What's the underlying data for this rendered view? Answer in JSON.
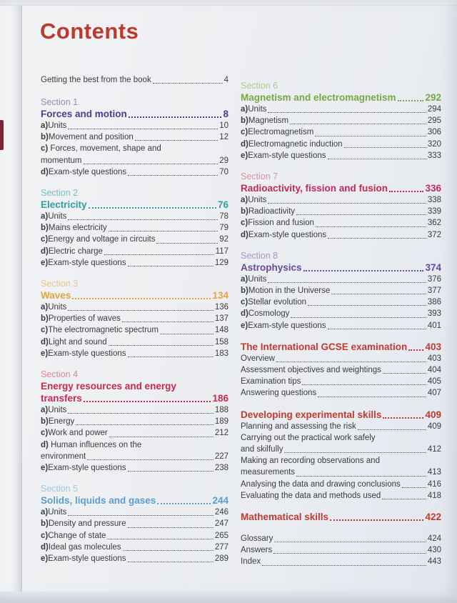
{
  "page": {
    "title": "Contents",
    "title_color": "#bb3a2d",
    "intro_entry": {
      "text": "Getting the best from the book",
      "page": "4"
    }
  },
  "columns": {
    "left": [
      {
        "label": "Section 1",
        "label_color": "#948bb5",
        "color": "#4a3d8f",
        "title": "Forces and motion",
        "page": "8",
        "entries": [
          {
            "prefix": "a)",
            "text": "Units",
            "page": "10"
          },
          {
            "prefix": "b)",
            "text": "Movement and position",
            "page": "12"
          },
          {
            "prefix": "c)",
            "text": "Forces, movement, shape and",
            "text2": "momentum",
            "page": "29"
          },
          {
            "prefix": "d)",
            "text": "Exam-style questions",
            "page": "70"
          }
        ]
      },
      {
        "label": "Section 2",
        "label_color": "#79bcc0",
        "color": "#2f9fa4",
        "title": "Electricity",
        "page": "76",
        "entries": [
          {
            "prefix": "a)",
            "text": "Units",
            "page": "78"
          },
          {
            "prefix": "b)",
            "text": "Mains electricity",
            "page": "79"
          },
          {
            "prefix": "c)",
            "text": "Energy and voltage in circuits",
            "page": "92"
          },
          {
            "prefix": "d)",
            "text": "Electric charge",
            "page": "117"
          },
          {
            "prefix": "e)",
            "text": "Exam-style questions",
            "page": "129"
          }
        ]
      },
      {
        "label": "Section 3",
        "label_color": "#eec489",
        "color": "#e8a23e",
        "title": "Waves",
        "page": "134",
        "entries": [
          {
            "prefix": "a)",
            "text": "Units",
            "page": "136"
          },
          {
            "prefix": "b)",
            "text": "Properties of waves",
            "page": "137"
          },
          {
            "prefix": "c)",
            "text": "The electromagnetic spectrum",
            "page": "148"
          },
          {
            "prefix": "d)",
            "text": "Light and sound",
            "page": "158"
          },
          {
            "prefix": "e)",
            "text": "Exam-style questions",
            "page": "183"
          }
        ]
      },
      {
        "label": "Section 4",
        "label_color": "#e2889a",
        "color": "#d0274a",
        "title": "Energy resources and energy",
        "title2": "transfers",
        "page": "186",
        "entries": [
          {
            "prefix": "a)",
            "text": "Units",
            "page": "188"
          },
          {
            "prefix": "b)",
            "text": "Energy",
            "page": "189"
          },
          {
            "prefix": "c)",
            "text": "Work and power",
            "page": "212"
          },
          {
            "prefix": "d)",
            "text": "Human influences on the",
            "text2": "environment",
            "page": "227"
          },
          {
            "prefix": "e)",
            "text": "Exam-style questions",
            "page": "238"
          }
        ]
      },
      {
        "label": "Section 5",
        "label_color": "#a3c6e6",
        "color": "#5d9cd3",
        "title": "Solids, liquids and gases",
        "page": "244",
        "entries": [
          {
            "prefix": "a)",
            "text": "Units",
            "page": "246"
          },
          {
            "prefix": "b)",
            "text": "Density and pressure",
            "page": "247"
          },
          {
            "prefix": "c)",
            "text": "Change of state",
            "page": "265"
          },
          {
            "prefix": "d)",
            "text": "Ideal gas molecules",
            "page": "277"
          },
          {
            "prefix": "e)",
            "text": "Exam-style questions",
            "page": "289"
          }
        ]
      }
    ],
    "right": [
      {
        "label": "Section 6",
        "label_color": "#adcb87",
        "color": "#78a844",
        "title": "Magnetism and electromagnetism",
        "page": "292",
        "entries": [
          {
            "prefix": "a)",
            "text": "Units",
            "page": "294"
          },
          {
            "prefix": "b)",
            "text": "Magnetism",
            "page": "295"
          },
          {
            "prefix": "c)",
            "text": "Electromagnetism",
            "page": "306"
          },
          {
            "prefix": "d)",
            "text": "Electromagnetic induction",
            "page": "320"
          },
          {
            "prefix": "e)",
            "text": "Exam-style questions",
            "page": "333"
          }
        ]
      },
      {
        "label": "Section 7",
        "label_color": "#dd8fa6",
        "color": "#c52a55",
        "title": "Radioactivity, fission and fusion",
        "page": "336",
        "entries": [
          {
            "prefix": "a)",
            "text": "Units",
            "page": "338"
          },
          {
            "prefix": "b)",
            "text": "Radioactivity",
            "page": "339"
          },
          {
            "prefix": "c)",
            "text": "Fission and fusion",
            "page": "362"
          },
          {
            "prefix": "d)",
            "text": "Exam-style questions",
            "page": "372"
          }
        ]
      },
      {
        "label": "Section 8",
        "label_color": "#a495c4",
        "color": "#684a9e",
        "title": "Astrophysics",
        "page": "374",
        "entries": [
          {
            "prefix": "a)",
            "text": "Units",
            "page": "376"
          },
          {
            "prefix": "b)",
            "text": "Motion in the Universe",
            "page": "377"
          },
          {
            "prefix": "c)",
            "text": "Stellar evolution",
            "page": "386"
          },
          {
            "prefix": "d)",
            "text": "Cosmology",
            "page": "393"
          },
          {
            "prefix": "e)",
            "text": "Exam-style questions",
            "page": "401"
          }
        ]
      },
      {
        "color": "#c23a30",
        "title": "The International GCSE examination",
        "page": "403",
        "entries": [
          {
            "text": "Overview",
            "page": "403"
          },
          {
            "text": "Assessment objectives and weightings",
            "page": "404"
          },
          {
            "text": "Examination tips",
            "page": "405"
          },
          {
            "text": "Answering questions",
            "page": "407"
          }
        ]
      },
      {
        "color": "#c23a30",
        "title": "Developing experimental skills",
        "page": "409",
        "entries": [
          {
            "text": "Planning and assessing the risk",
            "page": "409"
          },
          {
            "text": "Carrying out the practical work safely",
            "text2": "and skilfully",
            "page": "412"
          },
          {
            "text": "Making an recording observations and",
            "text2": "measurements",
            "page": "413"
          },
          {
            "text": "Analysing the data and drawing conclusions",
            "page": "416"
          },
          {
            "text": "Evaluating the data and methods used",
            "page": "418"
          }
        ]
      },
      {
        "color": "#c23a30",
        "title": "Mathematical skills",
        "page": "422",
        "entries": []
      },
      {
        "extra_gap": true,
        "entries": [
          {
            "text": "Glossary",
            "page": "424"
          },
          {
            "text": "Answers",
            "page": "430"
          },
          {
            "text": "Index",
            "page": "443"
          }
        ]
      }
    ]
  }
}
